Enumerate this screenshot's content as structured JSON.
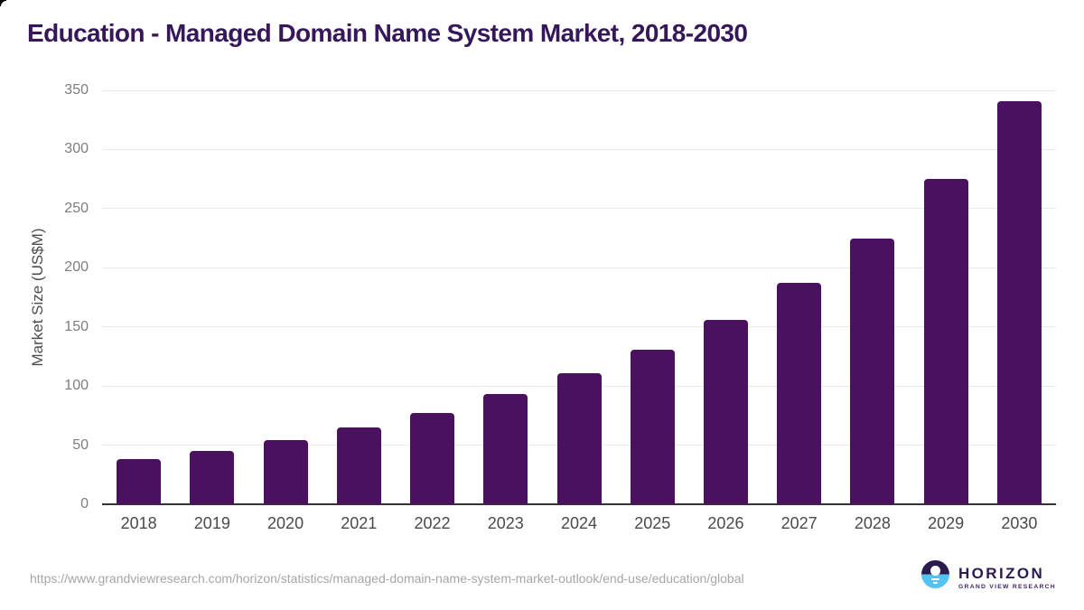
{
  "title": "Education - Managed Domain Name System Market, 2018-2030",
  "chart_data": {
    "type": "bar",
    "title": "Education - Managed Domain Name System Market, 2018-2030",
    "categories": [
      "2018",
      "2019",
      "2020",
      "2021",
      "2022",
      "2023",
      "2024",
      "2025",
      "2026",
      "2027",
      "2028",
      "2029",
      "2030"
    ],
    "values": [
      38,
      45,
      54,
      65,
      77,
      93,
      111,
      131,
      156,
      187,
      225,
      275,
      341
    ],
    "xlabel": "",
    "ylabel": "Market Size (US$M)",
    "ylim": [
      0,
      350
    ],
    "ytick_interval": 50,
    "grid": "horizontal",
    "legend": "none",
    "bar_color": "#4a1160"
  },
  "footer": {
    "source_url": "https://www.grandviewresearch.com/horizon/statistics/managed-domain-name-system-market-outlook/end-use/education/global",
    "logo": {
      "name": "HORIZON",
      "subtitle": "GRAND VIEW RESEARCH"
    }
  },
  "colors": {
    "bar": "#4a1160",
    "title_text": "#35175a",
    "axis_line": "#333333",
    "gridline": "#e9e9e9",
    "y_tick_text": "#7d7d7d",
    "x_tick_text": "#4a4a4a",
    "source_text": "#a6a6a6",
    "logo_purple": "#2b1a4e",
    "logo_blue": "#55c3f0"
  }
}
